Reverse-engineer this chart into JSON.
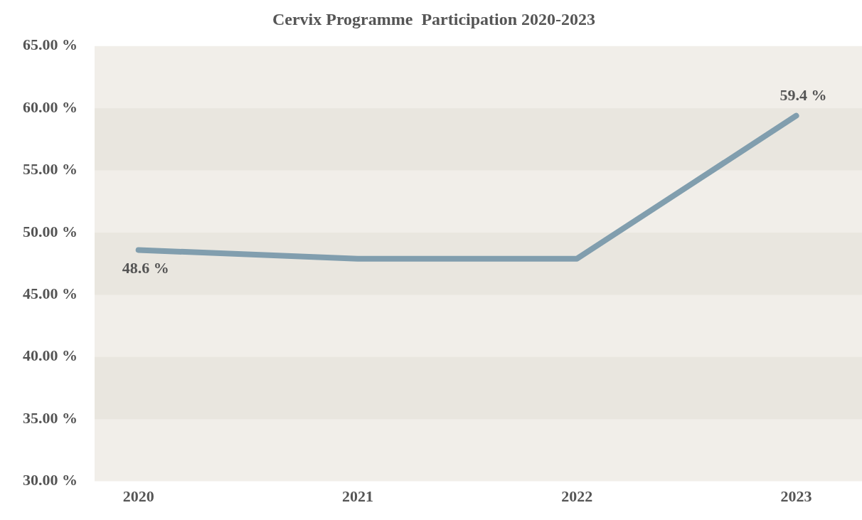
{
  "chart_data": {
    "type": "line",
    "title": "Cervix Programme  Participation 2020-2023",
    "x": [
      2020,
      2021,
      2022,
      2023
    ],
    "values": [
      48.6,
      47.9,
      47.9,
      59.4
    ],
    "value_labels": [
      "48.6 %",
      null,
      null,
      "59.4 %"
    ],
    "color": "#819eae",
    "xlim": [
      2019.8,
      2023.3
    ],
    "xticks": [
      2020,
      2021,
      2022,
      2023
    ],
    "ylim": [
      30,
      65
    ],
    "yticks": [
      {
        "value": 30,
        "label": "30.00 %"
      },
      {
        "value": 35,
        "label": "35.00 %"
      },
      {
        "value": 40,
        "label": "40.00 %"
      },
      {
        "value": 45,
        "label": "45.00 %"
      },
      {
        "value": 50,
        "label": "50.00 %"
      },
      {
        "value": 55,
        "label": "55.00 %"
      },
      {
        "value": 60,
        "label": "60.00 %"
      },
      {
        "value": 65,
        "label": "65.00 %"
      }
    ],
    "marker": "none",
    "line_style": "solid",
    "legend": false
  }
}
